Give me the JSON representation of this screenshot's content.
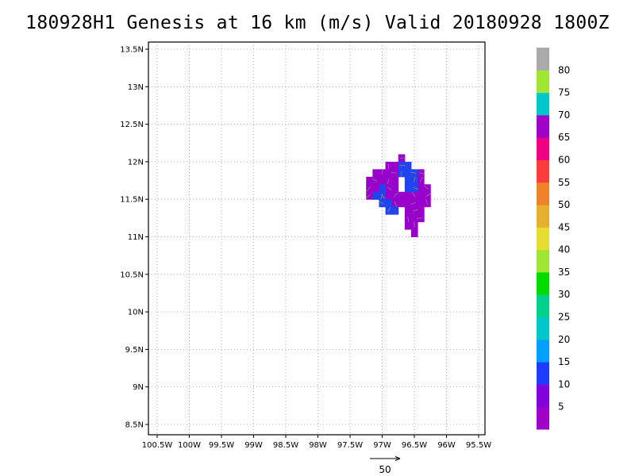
{
  "title": "180928H1 Genesis at 16 km (m/s) Valid 20180928 1800Z",
  "map": {
    "lon_range": [
      -100.5,
      -95.5
    ],
    "lat_range": [
      8.5,
      13.5
    ],
    "lon_ticks": [
      {
        "value": -100.5,
        "label": "100.5W"
      },
      {
        "value": -100.0,
        "label": "100W"
      },
      {
        "value": -99.5,
        "label": "99.5W"
      },
      {
        "value": -99.0,
        "label": "99W"
      },
      {
        "value": -98.5,
        "label": "98.5W"
      },
      {
        "value": -98.0,
        "label": "98W"
      },
      {
        "value": -97.5,
        "label": "97.5W"
      },
      {
        "value": -97.0,
        "label": "97W"
      },
      {
        "value": -96.5,
        "label": "96.5W"
      },
      {
        "value": -96.0,
        "label": "96W"
      },
      {
        "value": -95.5,
        "label": "95.5W"
      }
    ],
    "lat_ticks": [
      {
        "value": 13.5,
        "label": "13.5N"
      },
      {
        "value": 13.0,
        "label": "13N"
      },
      {
        "value": 12.5,
        "label": "12.5N"
      },
      {
        "value": 12.0,
        "label": "12N"
      },
      {
        "value": 11.5,
        "label": "11.5N"
      },
      {
        "value": 11.0,
        "label": "11N"
      },
      {
        "value": 10.5,
        "label": "10.5N"
      },
      {
        "value": 10.0,
        "label": "10N"
      },
      {
        "value": 9.5,
        "label": "9.5N"
      },
      {
        "value": 9.0,
        "label": "9N"
      },
      {
        "value": 8.5,
        "label": "8.5N"
      }
    ],
    "grid": true,
    "grid_style": "dotted",
    "purple_cells": [
      [
        -96.7,
        12.05
      ],
      [
        -96.8,
        11.95
      ],
      [
        -96.9,
        11.95
      ],
      [
        -96.7,
        11.95
      ],
      [
        -96.8,
        11.85
      ],
      [
        -96.9,
        11.85
      ],
      [
        -97.0,
        11.85
      ],
      [
        -97.1,
        11.85
      ],
      [
        -96.4,
        11.85
      ],
      [
        -96.8,
        11.75
      ],
      [
        -96.9,
        11.75
      ],
      [
        -97.0,
        11.75
      ],
      [
        -97.1,
        11.75
      ],
      [
        -97.2,
        11.75
      ],
      [
        -96.4,
        11.75
      ],
      [
        -96.8,
        11.65
      ],
      [
        -96.9,
        11.65
      ],
      [
        -97.1,
        11.65
      ],
      [
        -97.2,
        11.65
      ],
      [
        -96.4,
        11.65
      ],
      [
        -96.3,
        11.65
      ],
      [
        -96.7,
        11.55
      ],
      [
        -96.8,
        11.55
      ],
      [
        -96.9,
        11.55
      ],
      [
        -97.0,
        11.55
      ],
      [
        -97.1,
        11.55
      ],
      [
        -97.2,
        11.55
      ],
      [
        -96.6,
        11.55
      ],
      [
        -96.5,
        11.55
      ],
      [
        -96.4,
        11.55
      ],
      [
        -96.3,
        11.55
      ],
      [
        -96.7,
        11.45
      ],
      [
        -96.8,
        11.45
      ],
      [
        -96.6,
        11.45
      ],
      [
        -96.5,
        11.45
      ],
      [
        -96.4,
        11.45
      ],
      [
        -96.3,
        11.45
      ],
      [
        -96.6,
        11.35
      ],
      [
        -96.5,
        11.35
      ],
      [
        -96.4,
        11.35
      ],
      [
        -96.6,
        11.25
      ],
      [
        -96.5,
        11.25
      ],
      [
        -96.4,
        11.25
      ],
      [
        -96.6,
        11.15
      ],
      [
        -96.5,
        11.15
      ],
      [
        -96.5,
        11.05
      ]
    ],
    "blue_cells": [
      [
        -96.7,
        11.95
      ],
      [
        -96.6,
        11.95
      ],
      [
        -96.7,
        11.85
      ],
      [
        -96.6,
        11.85
      ],
      [
        -96.5,
        11.85
      ],
      [
        -96.6,
        11.75
      ],
      [
        -96.5,
        11.75
      ],
      [
        -96.6,
        11.65
      ],
      [
        -96.5,
        11.65
      ],
      [
        -97.0,
        11.65
      ],
      [
        -97.0,
        11.55
      ],
      [
        -97.1,
        11.55
      ],
      [
        -97.0,
        11.45
      ],
      [
        -96.9,
        11.45
      ],
      [
        -96.9,
        11.35
      ],
      [
        -96.8,
        11.35
      ]
    ],
    "purple_color": "#9900cc",
    "blue_color": "#2244ee"
  },
  "colorbar": {
    "colors": [
      "#a000c8",
      "#8200dc",
      "#1e3cff",
      "#00a0ff",
      "#00c8c8",
      "#00d28c",
      "#00dc00",
      "#a0e632",
      "#e6dc32",
      "#e6af2d",
      "#f08228",
      "#fa3c3c",
      "#f00082",
      "#a000c8",
      "#00c8c8",
      "#a0e632",
      "#aaaaaa"
    ],
    "labels": [
      "5",
      "10",
      "15",
      "20",
      "25",
      "30",
      "35",
      "40",
      "45",
      "50",
      "55",
      "60",
      "65",
      "70",
      "75",
      "80"
    ]
  },
  "reference_vector": {
    "label": "50"
  }
}
